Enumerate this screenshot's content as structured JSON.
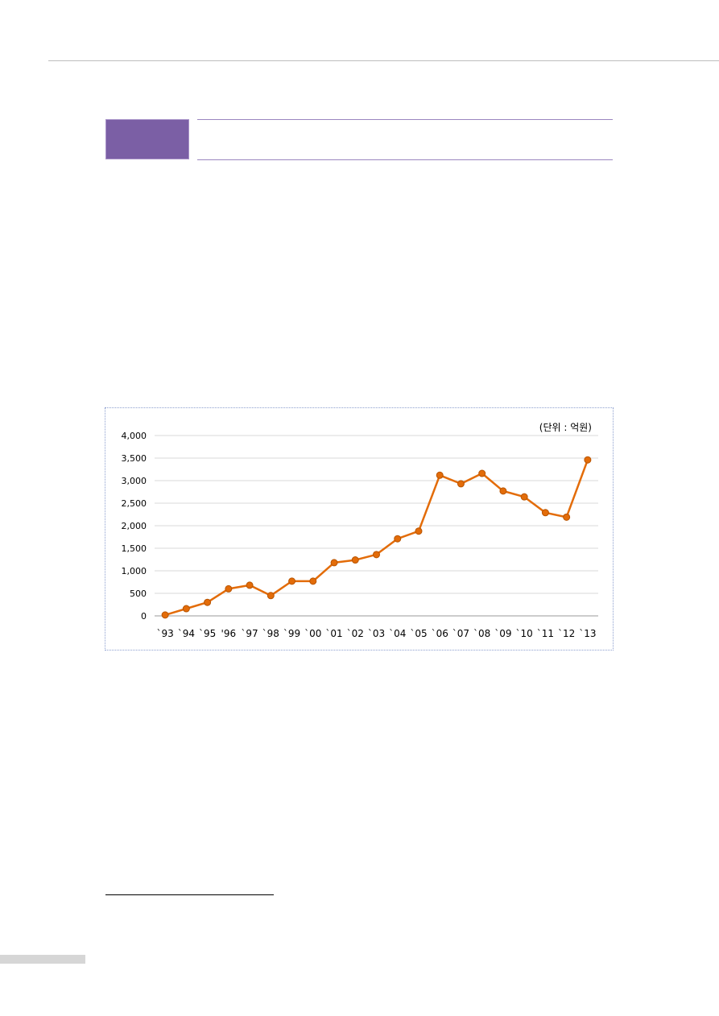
{
  "chart_data": {
    "type": "line",
    "unit_label": "(단위 : 억원)",
    "categories": [
      "`93",
      "`94",
      "`95",
      "'96",
      "`97",
      "`98",
      "`99",
      "`00",
      "`01",
      "`02",
      "`03",
      "`04",
      "`05",
      "`06",
      "`07",
      "`08",
      "`09",
      "`10",
      "`11",
      "`12",
      "`13"
    ],
    "series": [
      {
        "values": [
          20,
          160,
          300,
          600,
          680,
          450,
          770,
          770,
          1180,
          1240,
          1360,
          1710,
          1880,
          3120,
          2930,
          3160,
          2770,
          2640,
          2290,
          2190,
          3460
        ]
      }
    ],
    "ylim": [
      0,
      4000
    ],
    "yticks": [
      "4,000",
      "3,500",
      "3,000",
      "2,500",
      "2,000",
      "1,500",
      "1,000",
      "500",
      "0"
    ],
    "ytick_values": [
      4000,
      3500,
      3000,
      2500,
      2000,
      1500,
      1000,
      500,
      0
    ],
    "grid": true,
    "legend": "none",
    "line_color": "#e36c09",
    "marker_color": "#e36c09"
  }
}
